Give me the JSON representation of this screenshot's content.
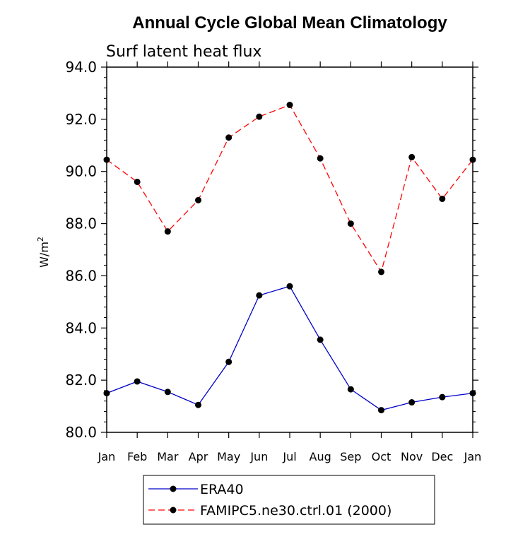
{
  "chart_data": {
    "type": "line",
    "title": "Annual Cycle Global Mean Climatology",
    "subtitle": "Surf latent heat flux",
    "xlabel": "",
    "ylabel": "W/m",
    "ylabel_superscript": "2",
    "ylim": [
      80.0,
      94.0
    ],
    "y_ticks": [
      "80.0",
      "82.0",
      "84.0",
      "86.0",
      "88.0",
      "90.0",
      "92.0",
      "94.0"
    ],
    "categories": [
      "Jan",
      "Feb",
      "Mar",
      "Apr",
      "May",
      "Jun",
      "Jul",
      "Aug",
      "Sep",
      "Oct",
      "Nov",
      "Dec",
      "Jan"
    ],
    "series": [
      {
        "name": "ERA40",
        "color": "#0000cc",
        "dash": "solid",
        "values": [
          81.5,
          81.95,
          81.55,
          81.05,
          82.7,
          85.25,
          85.6,
          83.55,
          81.65,
          80.85,
          81.15,
          81.35,
          81.5
        ]
      },
      {
        "name": "FAMIPC5.ne30.ctrl.01 (2000)",
        "color": "#ff0000",
        "dash": "dashed",
        "values": [
          90.45,
          89.6,
          87.7,
          88.9,
          91.3,
          92.1,
          92.55,
          90.5,
          88.0,
          86.15,
          90.55,
          88.95,
          90.45
        ]
      }
    ],
    "legend_position": "bottom-center",
    "grid": false
  }
}
